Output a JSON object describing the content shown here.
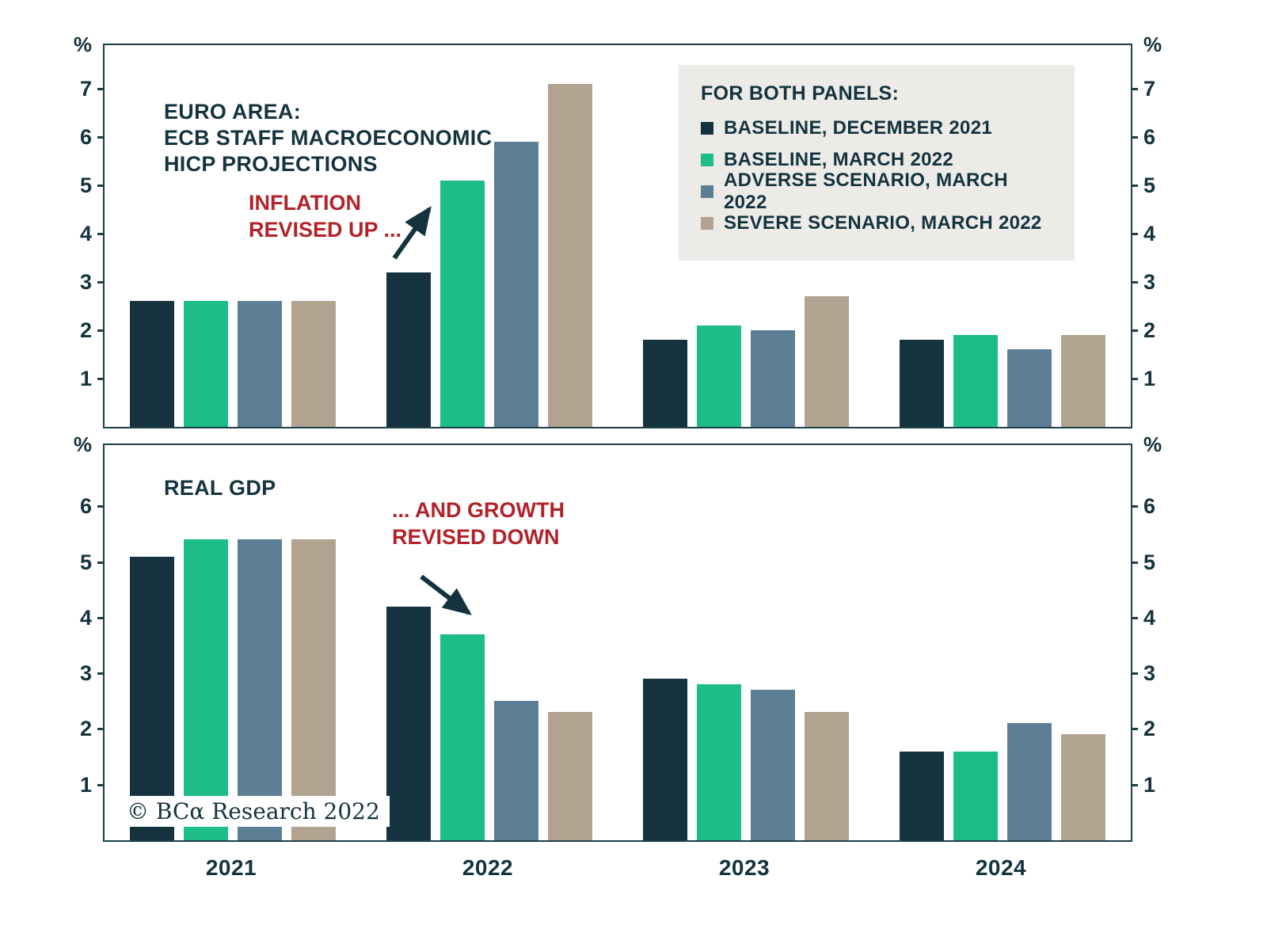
{
  "copyright": "© BCα Research 2022",
  "annotations": {
    "inflation": "INFLATION\nREVISED UP ...",
    "growth": "... AND GROWTH\nREVISED DOWN"
  },
  "legend": {
    "title": "FOR BOTH PANELS:",
    "items": [
      {
        "label": "BASELINE, DECEMBER 2021",
        "color": "#14333e"
      },
      {
        "label": "BASELINE, MARCH 2022",
        "color": "#1dbd89"
      },
      {
        "label": "ADVERSE SCENARIO, MARCH 2022",
        "color": "#5d7f95"
      },
      {
        "label": "SEVERE SCENARIO, MARCH 2022",
        "color": "#b2a391"
      }
    ]
  },
  "colors": {
    "baseline_dec_2021": "#14333e",
    "baseline_mar_2022": "#1dbd89",
    "adverse_mar_2022": "#5d7f95",
    "severe_mar_2022": "#b2a391",
    "annotation_red": "#b2222a",
    "axis_dark": "#1c3f4b",
    "legend_bg": "#ecebe7"
  },
  "chart_data": [
    {
      "type": "bar",
      "title": "EURO AREA:\nECB STAFF MACROECONOMIC\nHICP PROJECTIONS",
      "ylabel": "%",
      "categories": [
        "2021",
        "2022",
        "2023",
        "2024"
      ],
      "yticks": [
        1,
        2,
        3,
        4,
        5,
        6,
        7
      ],
      "ylim": [
        0,
        7.9
      ],
      "grid": false,
      "legend_position": "top-right",
      "series": [
        {
          "name": "BASELINE, DECEMBER 2021",
          "color": "#14333e",
          "values": [
            2.6,
            3.2,
            1.8,
            1.8
          ]
        },
        {
          "name": "BASELINE, MARCH 2022",
          "color": "#1dbd89",
          "values": [
            2.6,
            5.1,
            2.1,
            1.9
          ]
        },
        {
          "name": "ADVERSE SCENARIO, MARCH 2022",
          "color": "#5d7f95",
          "values": [
            2.6,
            5.9,
            2.0,
            1.6
          ]
        },
        {
          "name": "SEVERE SCENARIO, MARCH 2022",
          "color": "#b2a391",
          "values": [
            2.6,
            7.1,
            2.7,
            1.9
          ]
        }
      ]
    },
    {
      "type": "bar",
      "title": "REAL GDP",
      "ylabel": "%",
      "categories": [
        "2021",
        "2022",
        "2023",
        "2024"
      ],
      "yticks": [
        1,
        2,
        3,
        4,
        5,
        6
      ],
      "ylim": [
        0,
        7.1
      ],
      "grid": false,
      "legend_position": "shared-with-top-panel",
      "series": [
        {
          "name": "BASELINE, DECEMBER 2021",
          "color": "#14333e",
          "values": [
            5.1,
            4.2,
            2.9,
            1.6
          ]
        },
        {
          "name": "BASELINE, MARCH 2022",
          "color": "#1dbd89",
          "values": [
            5.4,
            3.7,
            2.8,
            1.6
          ]
        },
        {
          "name": "ADVERSE SCENARIO, MARCH 2022",
          "color": "#5d7f95",
          "values": [
            5.4,
            2.5,
            2.7,
            2.1
          ]
        },
        {
          "name": "SEVERE SCENARIO, MARCH 2022",
          "color": "#b2a391",
          "values": [
            5.4,
            2.3,
            2.3,
            1.9
          ]
        }
      ]
    }
  ]
}
